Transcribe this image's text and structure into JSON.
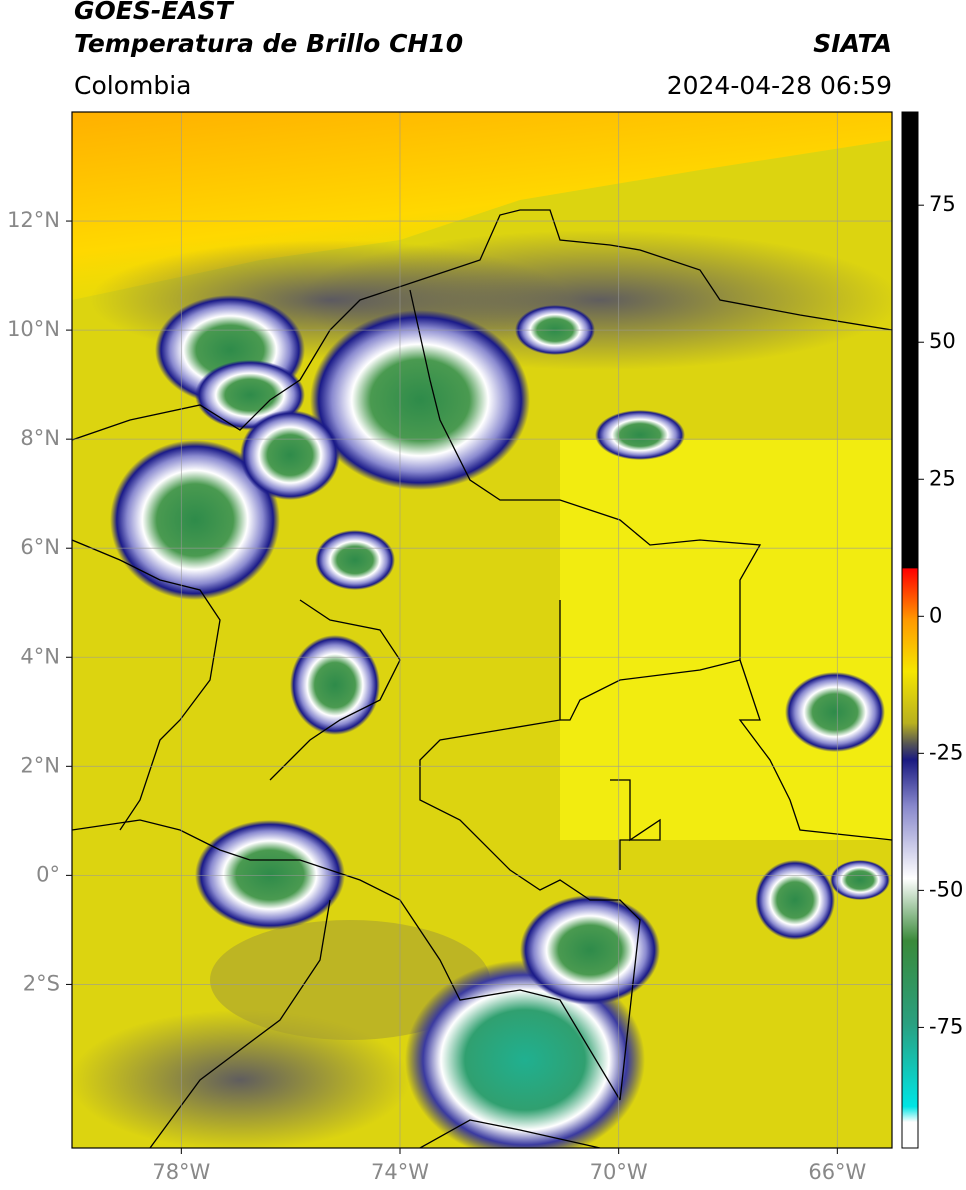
{
  "header": {
    "title_line1": "GOES-EAST",
    "title_line2": "Temperatura de Brillo CH10",
    "source": "SIATA",
    "region": "Colombia",
    "datetime": "2024-04-28 06:59"
  },
  "map": {
    "xlim": [
      -80,
      -65
    ],
    "ylim": [
      -5,
      14
    ],
    "xticks": [
      {
        "value": -78,
        "label": "78°W"
      },
      {
        "value": -74,
        "label": "74°W"
      },
      {
        "value": -70,
        "label": "70°W"
      },
      {
        "value": -66,
        "label": "66°W"
      }
    ],
    "yticks": [
      {
        "value": 12,
        "label": "12°N"
      },
      {
        "value": 10,
        "label": "10°N"
      },
      {
        "value": 8,
        "label": "8°N"
      },
      {
        "value": 6,
        "label": "6°N"
      },
      {
        "value": 4,
        "label": "4°N"
      },
      {
        "value": 2,
        "label": "2°N"
      },
      {
        "value": 0,
        "label": "0°"
      },
      {
        "value": -2,
        "label": "2°S"
      }
    ],
    "grid": true
  },
  "colorbar": {
    "lim": [
      -97,
      92
    ],
    "ticks": [
      75,
      50,
      25,
      0,
      -25,
      -50,
      -75
    ]
  }
}
